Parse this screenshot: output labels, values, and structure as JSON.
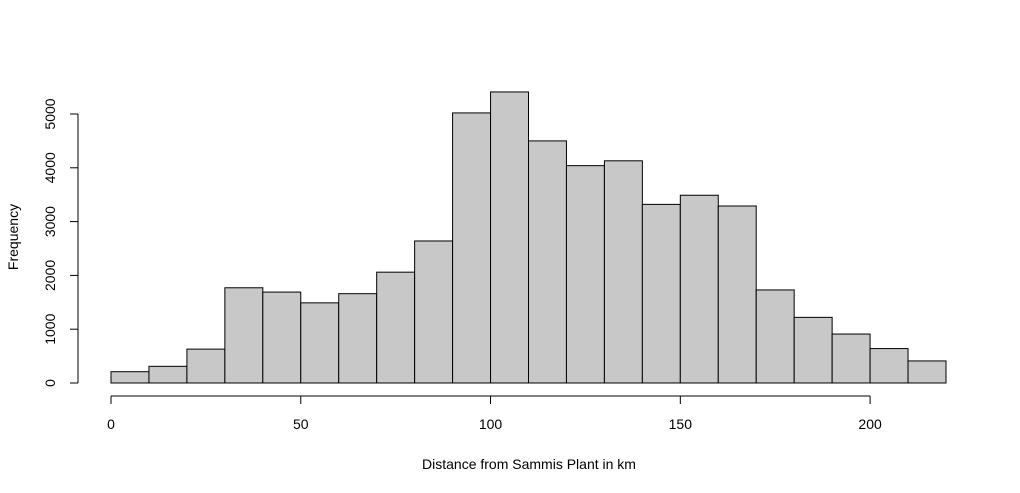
{
  "chart_data": {
    "type": "bar",
    "title": "",
    "xlabel": "Distance from Sammis Plant in km",
    "ylabel": "Frequency",
    "bin_edges": [
      0,
      10,
      20,
      30,
      40,
      50,
      60,
      70,
      80,
      90,
      100,
      110,
      120,
      130,
      140,
      150,
      160,
      170,
      180,
      190,
      200,
      210,
      220
    ],
    "values": [
      210,
      310,
      630,
      1770,
      1690,
      1490,
      1660,
      2060,
      2640,
      5020,
      5410,
      4500,
      4040,
      4130,
      3320,
      3490,
      3290,
      1730,
      1220,
      910,
      640,
      410
    ],
    "xlim": [
      0,
      220
    ],
    "ylim": [
      0,
      5410
    ],
    "x_ticks": [
      0,
      50,
      100,
      150,
      200
    ],
    "y_ticks": [
      0,
      1000,
      2000,
      3000,
      4000,
      5000
    ],
    "bar_color": "#c8c8c8",
    "grid": false
  }
}
